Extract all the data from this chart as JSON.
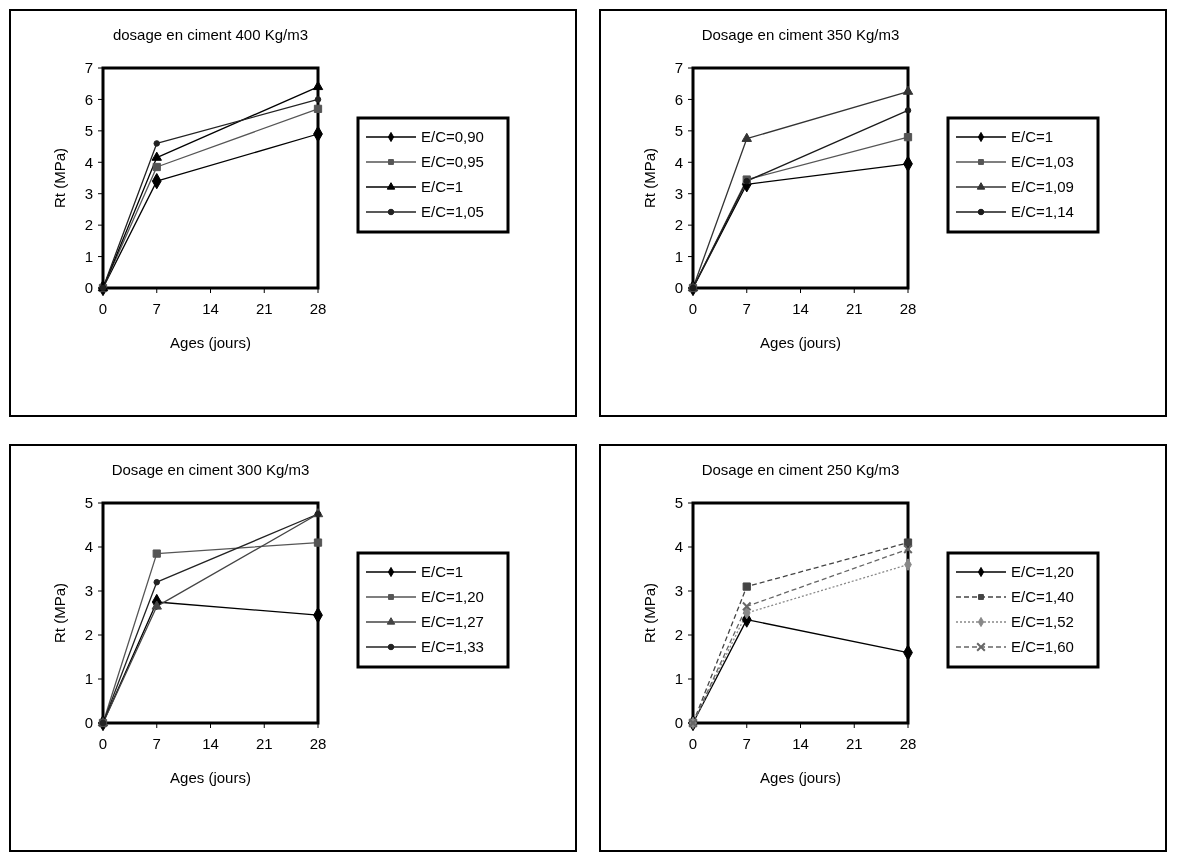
{
  "chart_data": [
    {
      "type": "line",
      "title": "dosage en ciment 400 Kg/m3",
      "xlabel": "Ages (jours)",
      "ylabel": "Rt (MPa)",
      "x": [
        0,
        7,
        28
      ],
      "xlim": [
        0,
        28
      ],
      "xticks": [
        0,
        7,
        14,
        21,
        28
      ],
      "ylim": [
        0,
        7
      ],
      "yticks": [
        0,
        1,
        2,
        3,
        4,
        5,
        6,
        7
      ],
      "grid": false,
      "legend": "right",
      "series": [
        {
          "name": "E/C=0,90",
          "color": "#000000",
          "marker": "diamond",
          "values": [
            0,
            3.4,
            4.9
          ]
        },
        {
          "name": "E/C=0,95",
          "color": "#555555",
          "marker": "square",
          "values": [
            0,
            3.85,
            5.7
          ]
        },
        {
          "name": "E/C=1",
          "color": "#000000",
          "marker": "triangle",
          "values": [
            0,
            4.15,
            6.4
          ]
        },
        {
          "name": "E/C=1,05",
          "color": "#222222",
          "marker": "circle",
          "values": [
            0,
            4.6,
            6.0
          ]
        }
      ]
    },
    {
      "type": "line",
      "title": "Dosage en ciment 350 Kg/m3",
      "xlabel": "Ages (jours)",
      "ylabel": "Rt (MPa)",
      "x": [
        0,
        7,
        28
      ],
      "xlim": [
        0,
        28
      ],
      "xticks": [
        0,
        7,
        14,
        21,
        28
      ],
      "ylim": [
        0,
        7
      ],
      "yticks": [
        0,
        1,
        2,
        3,
        4,
        5,
        6,
        7
      ],
      "grid": false,
      "legend": "right",
      "series": [
        {
          "name": "E/C=1",
          "color": "#000000",
          "marker": "diamond",
          "values": [
            0,
            3.3,
            3.95
          ]
        },
        {
          "name": "E/C=1,03",
          "color": "#555555",
          "marker": "square",
          "values": [
            0,
            3.45,
            4.8
          ]
        },
        {
          "name": "E/C=1,09",
          "color": "#333333",
          "marker": "triangle",
          "values": [
            0,
            4.75,
            6.25
          ]
        },
        {
          "name": "E/C=1,14",
          "color": "#1a1a1a",
          "marker": "circle",
          "values": [
            0,
            3.4,
            5.65
          ]
        }
      ]
    },
    {
      "type": "line",
      "title": "Dosage en ciment 300 Kg/m3",
      "xlabel": "Ages (jours)",
      "ylabel": "Rt (MPa)",
      "x": [
        0,
        7,
        28
      ],
      "xlim": [
        0,
        28
      ],
      "xticks": [
        0,
        7,
        14,
        21,
        28
      ],
      "ylim": [
        0,
        5
      ],
      "yticks": [
        0,
        1,
        2,
        3,
        4,
        5
      ],
      "grid": false,
      "legend": "right",
      "series": [
        {
          "name": "E/C=1",
          "color": "#000000",
          "marker": "diamond",
          "values": [
            0,
            2.75,
            2.45
          ]
        },
        {
          "name": "E/C=1,20",
          "color": "#555555",
          "marker": "square",
          "values": [
            0,
            3.85,
            4.1
          ]
        },
        {
          "name": "E/C=1,27",
          "color": "#444444",
          "marker": "triangle",
          "values": [
            0,
            2.65,
            4.75
          ]
        },
        {
          "name": "E/C=1,33",
          "color": "#222222",
          "marker": "circle",
          "values": [
            0,
            3.2,
            4.75
          ]
        }
      ]
    },
    {
      "type": "line",
      "title": "Dosage en ciment 250 Kg/m3",
      "xlabel": "Ages (jours)",
      "ylabel": "Rt (MPa)",
      "x": [
        0,
        7,
        28
      ],
      "xlim": [
        0,
        28
      ],
      "xticks": [
        0,
        7,
        14,
        21,
        28
      ],
      "ylim": [
        0,
        5
      ],
      "yticks": [
        0,
        1,
        2,
        3,
        4,
        5
      ],
      "grid": false,
      "legend": "right",
      "series": [
        {
          "name": "E/C=1,20",
          "color": "#000000",
          "marker": "diamond",
          "values": [
            0,
            2.35,
            1.6
          ]
        },
        {
          "name": "E/C=1,40",
          "color": "#444444",
          "marker": "square",
          "line_style": "dashed",
          "values": [
            0,
            3.1,
            4.1
          ]
        },
        {
          "name": "E/C=1,52",
          "color": "#888888",
          "marker": "diamond",
          "line_style": "dotted",
          "values": [
            0,
            2.5,
            3.6
          ]
        },
        {
          "name": "E/C=1,60",
          "color": "#666666",
          "marker": "cross",
          "line_style": "dashed",
          "values": [
            0,
            2.65,
            3.95
          ]
        }
      ]
    }
  ]
}
